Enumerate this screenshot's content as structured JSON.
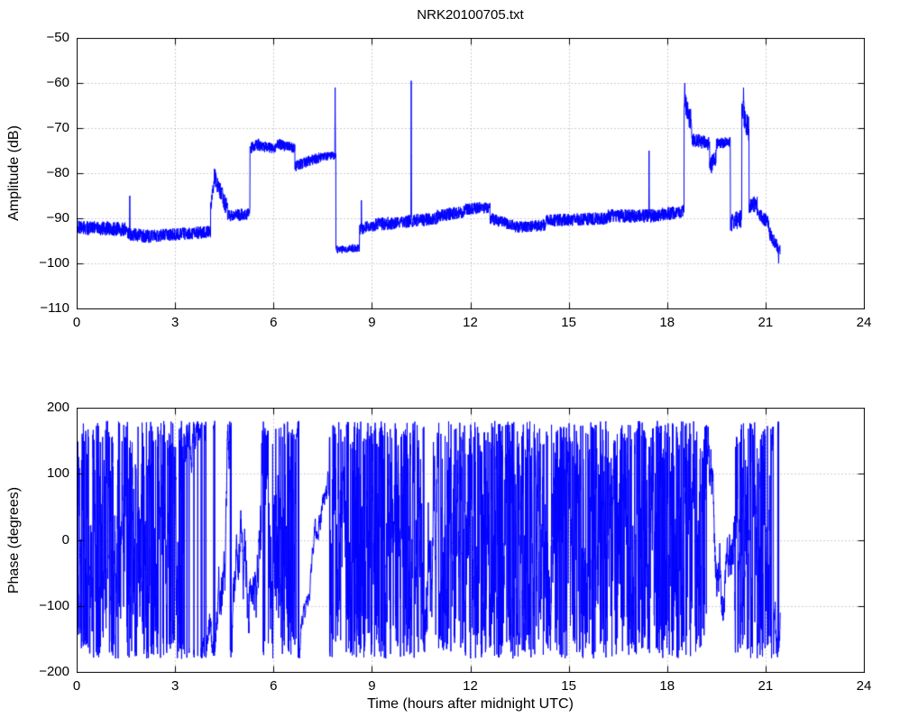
{
  "figure_title": "NRK20100705.txt",
  "colors": {
    "line": "#0000ff",
    "grid": "#9a9a9a",
    "axis": "#000000",
    "background": "#ffffff"
  },
  "chart_data": [
    {
      "type": "line",
      "title": "NRK20100705.txt",
      "xlabel": "",
      "ylabel": "Amplitude (dB)",
      "xlim": [
        0,
        24
      ],
      "ylim": [
        -110,
        -50
      ],
      "xticks": [
        0,
        3,
        6,
        9,
        12,
        15,
        18,
        21,
        24
      ],
      "xtick_labels": [
        "0",
        "3",
        "6",
        "9",
        "12",
        "15",
        "18",
        "21",
        "24"
      ],
      "yticks": [
        -110,
        -100,
        -90,
        -80,
        -70,
        -60,
        -50
      ],
      "ytick_labels": [
        "−110",
        "−100",
        "−90",
        "−80",
        "−70",
        "−60",
        "−50"
      ],
      "grid": true,
      "legend": null,
      "series_color": "#0000ff",
      "data_end_time": 21.45,
      "segments_format": "[t_start_h, t_end_h, dB_start, dB_end, noise_amplitude_dB]",
      "segments": [
        [
          0.0,
          1.55,
          -92.0,
          -92.5,
          1.6
        ],
        [
          1.55,
          2.2,
          -93.5,
          -94.0,
          1.5
        ],
        [
          2.2,
          4.08,
          -94.0,
          -93.0,
          1.4
        ],
        [
          4.08,
          4.22,
          -88.0,
          -80.5,
          2.0
        ],
        [
          4.22,
          4.6,
          -81.0,
          -88.0,
          2.0
        ],
        [
          4.6,
          5.28,
          -89.5,
          -89.0,
          1.3
        ],
        [
          5.28,
          5.55,
          -74.5,
          -73.5,
          1.3
        ],
        [
          5.55,
          6.1,
          -74.0,
          -74.5,
          1.2
        ],
        [
          6.1,
          6.65,
          -73.5,
          -74.5,
          1.2
        ],
        [
          6.65,
          7.0,
          -78.5,
          -77.5,
          1.2
        ],
        [
          7.0,
          7.45,
          -77.5,
          -76.5,
          1.2
        ],
        [
          7.45,
          7.9,
          -76.5,
          -76.0,
          1.0
        ],
        [
          7.9,
          8.62,
          -97.0,
          -96.5,
          0.9
        ],
        [
          8.62,
          9.0,
          -92.5,
          -91.5,
          1.3
        ],
        [
          9.0,
          9.7,
          -91.5,
          -91.0,
          1.5
        ],
        [
          9.7,
          11.0,
          -91.0,
          -90.0,
          1.4
        ],
        [
          11.0,
          11.8,
          -89.5,
          -88.5,
          1.4
        ],
        [
          11.8,
          12.6,
          -88.0,
          -87.5,
          1.3
        ],
        [
          12.6,
          13.3,
          -90.0,
          -91.5,
          1.3
        ],
        [
          13.3,
          14.3,
          -92.0,
          -91.5,
          1.3
        ],
        [
          14.3,
          16.2,
          -90.5,
          -90.0,
          1.4
        ],
        [
          16.2,
          17.5,
          -89.5,
          -89.5,
          1.5
        ],
        [
          17.5,
          18.52,
          -89.5,
          -88.5,
          1.5
        ],
        [
          18.52,
          18.75,
          -64.0,
          -69.0,
          2.5
        ],
        [
          18.75,
          19.3,
          -72.5,
          -73.5,
          1.5
        ],
        [
          19.3,
          19.5,
          -79.0,
          -76.0,
          2.0
        ],
        [
          19.5,
          19.93,
          -73.5,
          -73.0,
          1.2
        ],
        [
          19.93,
          20.28,
          -91.0,
          -90.0,
          2.0
        ],
        [
          20.28,
          20.5,
          -65.0,
          -71.0,
          3.0
        ],
        [
          20.5,
          20.75,
          -87.5,
          -86.5,
          1.8
        ],
        [
          20.75,
          21.1,
          -89.0,
          -91.0,
          1.5
        ],
        [
          21.1,
          21.45,
          -93.0,
          -97.5,
          1.5
        ]
      ],
      "spikes_format": "[t_h, peak_dB]",
      "spikes": [
        [
          1.62,
          -85.0
        ],
        [
          4.2,
          -79.0
        ],
        [
          7.88,
          -61.0
        ],
        [
          8.68,
          -86.0
        ],
        [
          10.2,
          -59.5
        ],
        [
          17.45,
          -75.0
        ],
        [
          18.54,
          -60.0
        ],
        [
          20.33,
          -61.0
        ],
        [
          21.4,
          -100.0
        ]
      ]
    },
    {
      "type": "line",
      "title": "",
      "xlabel": "Time (hours after midnight UTC)",
      "ylabel": "Phase (degrees)",
      "xlim": [
        0,
        24
      ],
      "ylim": [
        -200,
        200
      ],
      "xticks": [
        0,
        3,
        6,
        9,
        12,
        15,
        18,
        21,
        24
      ],
      "xtick_labels": [
        "0",
        "3",
        "6",
        "9",
        "12",
        "15",
        "18",
        "21",
        "24"
      ],
      "yticks": [
        -200,
        -100,
        0,
        100,
        200
      ],
      "ytick_labels": [
        "−200",
        "−100",
        "0",
        "100",
        "200"
      ],
      "grid": true,
      "legend": null,
      "series_color": "#0000ff",
      "data_end_time": 21.45,
      "wrap_range": [
        -180,
        180
      ],
      "behavior_format": "[t_start_h, t_end_h, random_walk_step_deg, drift_deg_per_h] (phase wraps at ±180)",
      "behavior": [
        [
          0.0,
          3.3,
          100,
          0
        ],
        [
          3.3,
          4.3,
          16,
          0
        ],
        [
          4.3,
          5.6,
          24,
          0
        ],
        [
          5.6,
          6.05,
          70,
          0
        ],
        [
          6.05,
          6.7,
          115,
          0
        ],
        [
          6.7,
          7.15,
          8,
          330
        ],
        [
          7.15,
          7.7,
          10,
          240
        ],
        [
          7.7,
          10.6,
          100,
          0
        ],
        [
          10.6,
          11.1,
          55,
          0
        ],
        [
          11.1,
          19.2,
          105,
          0
        ],
        [
          19.2,
          19.6,
          22,
          -260
        ],
        [
          19.6,
          20.05,
          24,
          300
        ],
        [
          20.05,
          21.2,
          100,
          0
        ],
        [
          21.2,
          21.45,
          20,
          380
        ]
      ]
    }
  ]
}
